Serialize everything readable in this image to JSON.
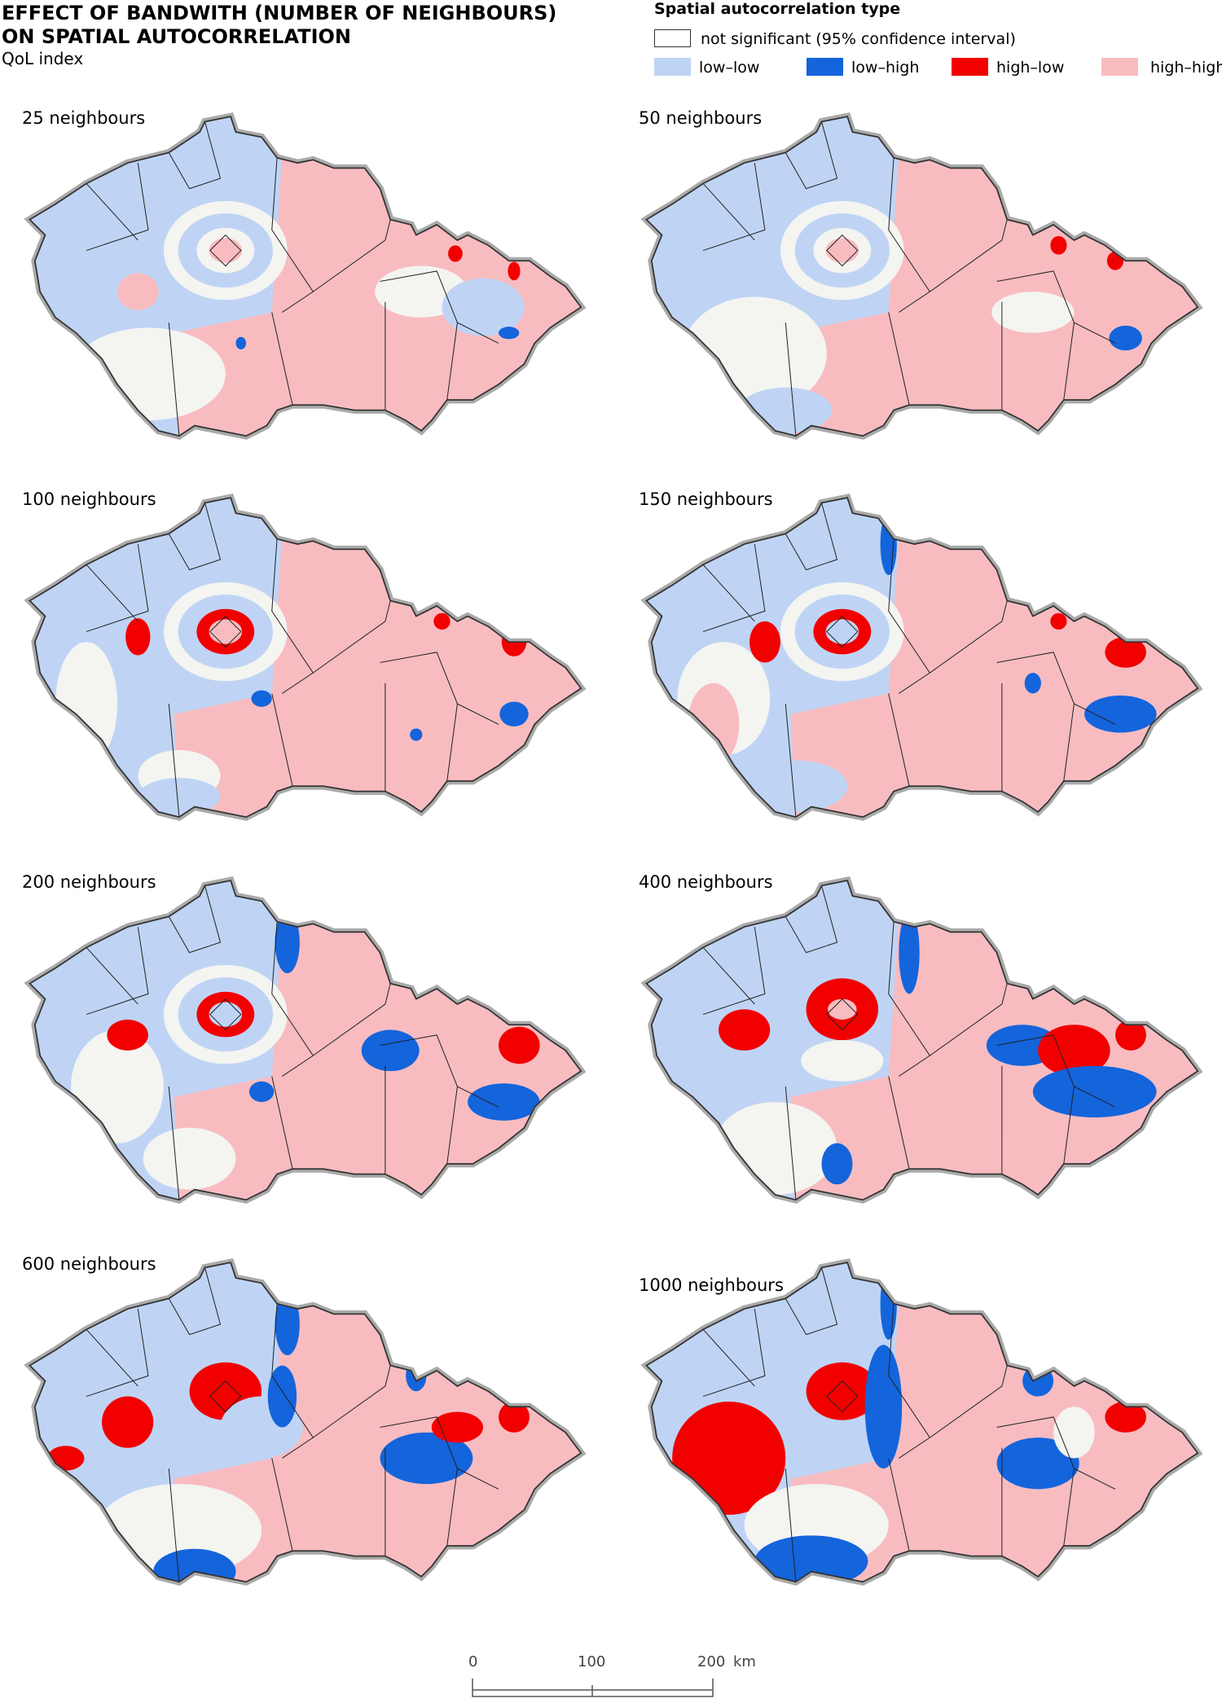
{
  "header": {
    "title_lines": [
      "EFFECT OF BANDWITH (NUMBER OF NEIGHBOURS)",
      "ON SPATIAL AUTOCORRELATION"
    ],
    "subtitle": "QoL index"
  },
  "legend": {
    "title": "Spatial autocorrelation type",
    "not_significant": {
      "label": "not significant (95% confidence interval)",
      "color": "#ffffff"
    },
    "items": [
      {
        "label": "low–low",
        "color": "#bfd4f5"
      },
      {
        "label": "low–high",
        "color": "#1464dc"
      },
      {
        "label": "high–low",
        "color": "#f20000"
      },
      {
        "label": "high–high",
        "color": "#f8bcc0"
      }
    ]
  },
  "panels": [
    {
      "label": "25 neighbours"
    },
    {
      "label": "50 neighbours"
    },
    {
      "label": "100 neighbours"
    },
    {
      "label": "150 neighbours"
    },
    {
      "label": "200 neighbours"
    },
    {
      "label": "400 neighbours"
    },
    {
      "label": "600 neighbours"
    },
    {
      "label": "1000 neighbours"
    }
  ],
  "scale_bar": {
    "ticks": [
      "0",
      "100",
      "200"
    ],
    "unit": "km"
  }
}
